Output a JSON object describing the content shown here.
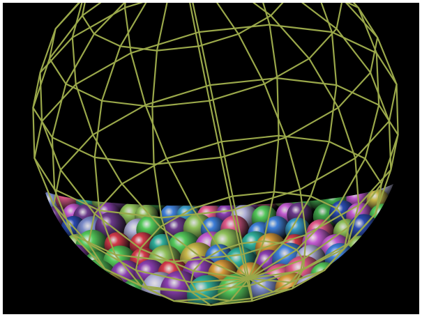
{
  "scene": {
    "subject": "wireframe-sphere-with-colored-balls",
    "background_color": "#000000",
    "wireframe_color": "#9aa84a",
    "ball_palette": [
      "#3fa54a",
      "#54c85a",
      "#8a3fb0",
      "#c25bd0",
      "#2a4ab0",
      "#3f7fd8",
      "#3a9cc8",
      "#d23a4a",
      "#e05a8a",
      "#d89a3a",
      "#c8b84a",
      "#8fc05a",
      "#2fae9a",
      "#7a8ac8",
      "#b0b0d8",
      "#6a3a8a"
    ]
  }
}
